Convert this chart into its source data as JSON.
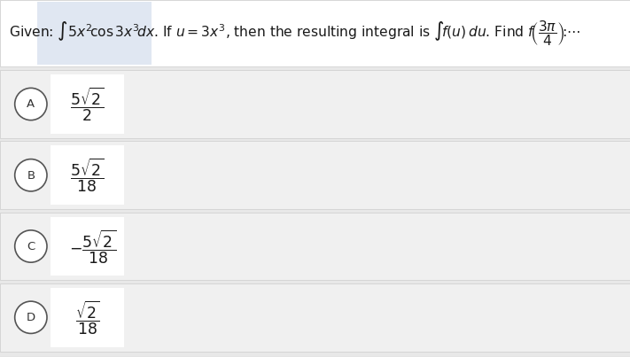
{
  "bg_color": "#e8e8e8",
  "header_bg": "#ffffff",
  "option_bg": "#f0f0f0",
  "option_border": "#cccccc",
  "expr_box_bg": "#ffffff",
  "header_text_color": "#1a1a1a",
  "option_text_color": "#1a1a1a",
  "circle_edge": "#555555",
  "options": [
    {
      "label": "A",
      "expr_num": "5\\sqrt{2}",
      "expr_den": "2",
      "negative": false
    },
    {
      "label": "B",
      "expr_num": "5\\sqrt{2}",
      "expr_den": "18",
      "negative": false
    },
    {
      "label": "C",
      "expr_num": "5\\sqrt{2}",
      "expr_den": "18",
      "negative": true
    },
    {
      "label": "D",
      "expr_num": "\\sqrt{2}",
      "expr_den": "18",
      "negative": false
    }
  ],
  "header_highlight_color": "#c8d4e8",
  "bottom_line_color": "#bbbbbb"
}
